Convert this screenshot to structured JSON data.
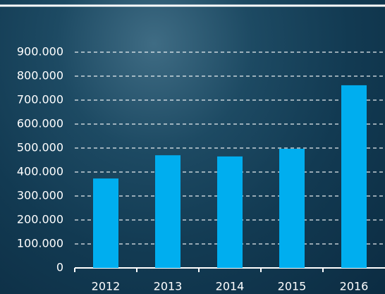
{
  "chart_data": {
    "type": "bar",
    "categories": [
      "2012",
      "2013",
      "2014",
      "2015",
      "2016"
    ],
    "values": [
      373000,
      470000,
      465000,
      497000,
      762000
    ],
    "color": "#00aeef",
    "ylim": [
      0,
      900000
    ],
    "yticks": [
      0,
      {
        "value": 100000,
        "label": "100.000"
      },
      {
        "value": 200000,
        "label": "200.000"
      },
      {
        "value": 300000,
        "label": "300.000"
      },
      {
        "value": 400000,
        "label": "400.000"
      },
      {
        "value": 500000,
        "label": "500.000"
      },
      {
        "value": 600000,
        "label": "600.000"
      },
      {
        "value": 700000,
        "label": "700.000"
      },
      {
        "value": 800000,
        "label": "800.000"
      },
      {
        "value": 900000,
        "label": "900.000"
      }
    ],
    "grid": true
  }
}
